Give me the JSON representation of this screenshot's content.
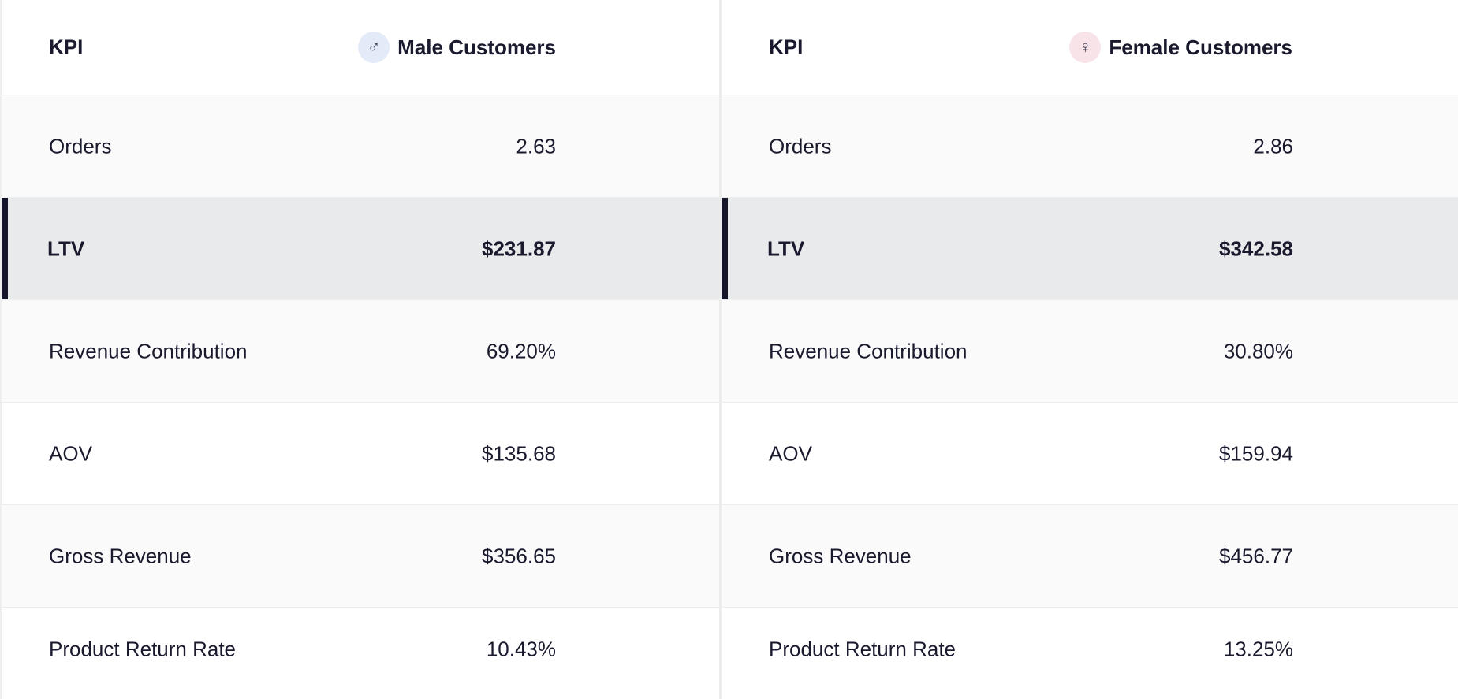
{
  "male": {
    "header": {
      "kpi": "KPI",
      "segment": "Male Customers",
      "icon": "male-symbol-icon",
      "icon_glyph": "♂",
      "icon_bg": "#e2ebf7"
    },
    "rows": [
      {
        "label": "Orders",
        "value": "2.63"
      },
      {
        "label": "LTV",
        "value": "$231.87"
      },
      {
        "label": "Revenue Contribution",
        "value": "69.20%"
      },
      {
        "label": "AOV",
        "value": "$135.68"
      },
      {
        "label": "Gross Revenue",
        "value": "$356.65"
      },
      {
        "label": "Product Return Rate",
        "value": "10.43%"
      }
    ]
  },
  "female": {
    "header": {
      "kpi": "KPI",
      "segment": "Female Customers",
      "icon": "female-symbol-icon",
      "icon_glyph": "♀",
      "icon_bg": "#f8e4e8"
    },
    "rows": [
      {
        "label": "Orders",
        "value": "2.86"
      },
      {
        "label": "LTV",
        "value": "$342.58"
      },
      {
        "label": "Revenue Contribution",
        "value": "30.80%"
      },
      {
        "label": "AOV",
        "value": "$159.94"
      },
      {
        "label": "Gross Revenue",
        "value": "$456.77"
      },
      {
        "label": "Product Return Rate",
        "value": "13.25%"
      }
    ]
  },
  "colors": {
    "highlight_row": "#e9eaec",
    "highlight_accent": "#16162b",
    "text": "#1a1a2e"
  }
}
